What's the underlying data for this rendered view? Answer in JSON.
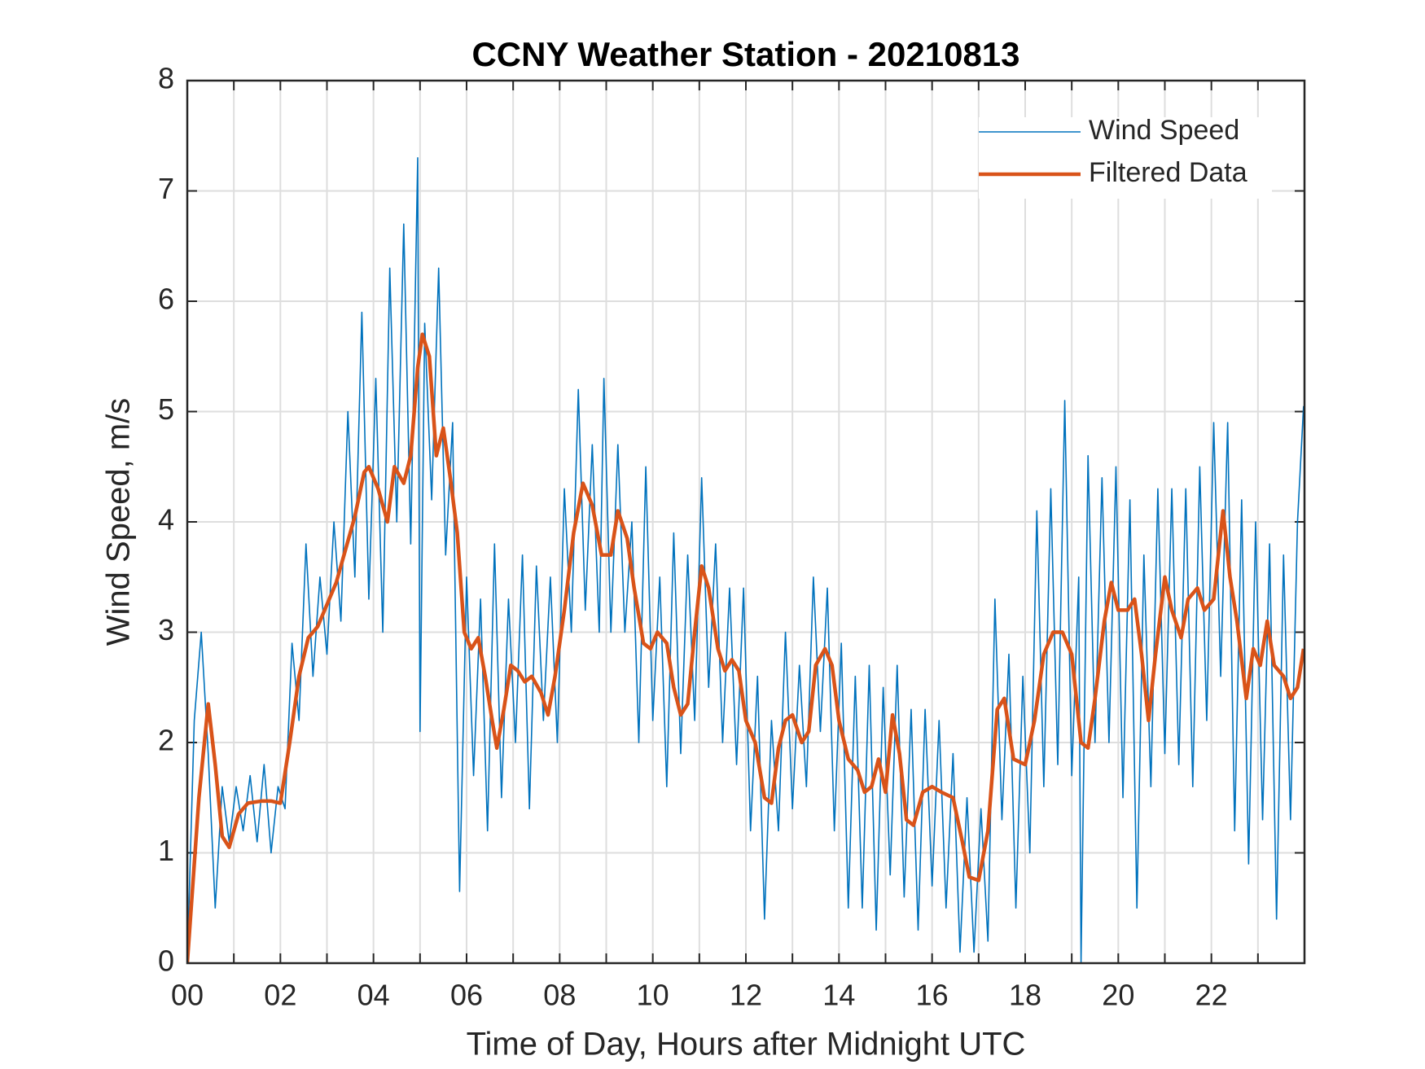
{
  "chart_data": {
    "type": "line",
    "title": "CCNY Weather Station - 20210813",
    "xlabel": "Time of Day, Hours after Midnight UTC",
    "ylabel": "Wind Speed, m/s",
    "xlim": [
      0,
      24
    ],
    "ylim": [
      0,
      8
    ],
    "xticks": [
      {
        "value": 0,
        "label": "00"
      },
      {
        "value": 2,
        "label": "02"
      },
      {
        "value": 4,
        "label": "04"
      },
      {
        "value": 6,
        "label": "06"
      },
      {
        "value": 8,
        "label": "08"
      },
      {
        "value": 10,
        "label": "10"
      },
      {
        "value": 12,
        "label": "12"
      },
      {
        "value": 14,
        "label": "14"
      },
      {
        "value": 16,
        "label": "16"
      },
      {
        "value": 18,
        "label": "18"
      },
      {
        "value": 20,
        "label": "20"
      },
      {
        "value": 22,
        "label": "22"
      }
    ],
    "xminorticks": [
      1,
      3,
      5,
      7,
      9,
      11,
      13,
      15,
      17,
      19,
      21,
      23
    ],
    "yticks": [
      0,
      1,
      2,
      3,
      4,
      5,
      6,
      7,
      8
    ],
    "grid": true,
    "legend": "upper right",
    "series": [
      {
        "name": "Wind Speed",
        "color": "#0072BD",
        "width": 1.6,
        "x": [
          0,
          0.15,
          0.3,
          0.45,
          0.6,
          0.75,
          0.9,
          1.05,
          1.2,
          1.35,
          1.5,
          1.65,
          1.8,
          1.95,
          2.1,
          2.25,
          2.4,
          2.55,
          2.7,
          2.85,
          3.0,
          3.15,
          3.3,
          3.45,
          3.6,
          3.75,
          3.9,
          4.05,
          4.2,
          4.35,
          4.5,
          4.65,
          4.8,
          4.95,
          5.0,
          5.1,
          5.25,
          5.4,
          5.55,
          5.7,
          5.85,
          6.0,
          6.15,
          6.3,
          6.45,
          6.6,
          6.75,
          6.9,
          7.05,
          7.2,
          7.35,
          7.5,
          7.65,
          7.8,
          7.95,
          8.1,
          8.25,
          8.4,
          8.55,
          8.7,
          8.85,
          8.95,
          9.1,
          9.25,
          9.4,
          9.55,
          9.7,
          9.85,
          10.0,
          10.15,
          10.3,
          10.45,
          10.6,
          10.75,
          10.9,
          11.05,
          11.2,
          11.35,
          11.5,
          11.65,
          11.8,
          11.95,
          12.1,
          12.25,
          12.4,
          12.55,
          12.7,
          12.85,
          13.0,
          13.15,
          13.3,
          13.45,
          13.6,
          13.75,
          13.9,
          14.05,
          14.2,
          14.35,
          14.5,
          14.65,
          14.8,
          14.95,
          15.1,
          15.25,
          15.4,
          15.55,
          15.7,
          15.85,
          16.0,
          16.15,
          16.3,
          16.45,
          16.6,
          16.75,
          16.9,
          17.05,
          17.2,
          17.35,
          17.5,
          17.65,
          17.8,
          17.95,
          18.1,
          18.25,
          18.4,
          18.55,
          18.7,
          18.85,
          19.0,
          19.15,
          19.2,
          19.35,
          19.5,
          19.65,
          19.8,
          19.95,
          20.1,
          20.25,
          20.4,
          20.55,
          20.7,
          20.85,
          21.0,
          21.15,
          21.3,
          21.45,
          21.6,
          21.75,
          21.9,
          22.05,
          22.2,
          22.35,
          22.5,
          22.65,
          22.8,
          22.95,
          23.1,
          23.25,
          23.4,
          23.55,
          23.7,
          23.85,
          23.98
        ],
        "values": [
          0,
          2.2,
          3.0,
          1.9,
          0.5,
          1.6,
          1.1,
          1.6,
          1.2,
          1.7,
          1.1,
          1.8,
          1.0,
          1.6,
          1.4,
          2.9,
          2.2,
          3.8,
          2.6,
          3.5,
          2.8,
          4.0,
          3.1,
          5.0,
          3.5,
          5.9,
          3.3,
          5.3,
          3.0,
          6.3,
          4.0,
          6.7,
          3.8,
          7.3,
          2.1,
          5.8,
          4.2,
          6.3,
          3.7,
          4.9,
          0.65,
          3.5,
          1.7,
          3.3,
          1.2,
          3.8,
          1.5,
          3.3,
          2.0,
          3.7,
          1.4,
          3.6,
          2.2,
          3.5,
          2.0,
          4.3,
          3.0,
          5.2,
          3.2,
          4.7,
          3.0,
          5.3,
          3.0,
          4.7,
          3.0,
          4.0,
          2.0,
          4.5,
          2.2,
          3.5,
          1.6,
          3.9,
          1.9,
          3.7,
          2.2,
          4.4,
          2.5,
          3.8,
          2.0,
          3.4,
          1.8,
          3.4,
          1.2,
          2.6,
          0.4,
          2.2,
          1.2,
          3.0,
          1.4,
          2.7,
          1.6,
          3.5,
          2.1,
          3.4,
          1.2,
          2.9,
          0.5,
          2.6,
          0.5,
          2.7,
          0.3,
          2.5,
          0.8,
          2.7,
          0.6,
          2.3,
          0.3,
          2.3,
          0.7,
          2.2,
          0.5,
          1.9,
          0.1,
          1.5,
          0.1,
          1.4,
          0.2,
          3.3,
          1.3,
          2.8,
          0.5,
          2.6,
          1.0,
          4.1,
          1.6,
          4.3,
          1.8,
          5.1,
          1.7,
          3.5,
          0.0,
          4.6,
          2.0,
          4.4,
          2.0,
          4.5,
          1.5,
          4.2,
          0.5,
          3.7,
          1.6,
          4.3,
          1.9,
          4.3,
          1.8,
          4.3,
          1.6,
          4.5,
          2.2,
          4.9,
          2.6,
          4.9,
          1.2,
          4.2,
          0.9,
          4.0,
          1.3,
          3.8,
          0.4,
          3.7,
          1.3,
          4.0,
          5.05
        ]
      },
      {
        "name": "Filtered Data",
        "color": "#D95319",
        "width": 4.5,
        "x": [
          0,
          0.25,
          0.45,
          0.6,
          0.75,
          0.9,
          1.1,
          1.3,
          1.6,
          1.8,
          2.0,
          2.2,
          2.4,
          2.6,
          2.8,
          3.0,
          3.2,
          3.4,
          3.6,
          3.8,
          3.9,
          4.1,
          4.3,
          4.45,
          4.65,
          4.8,
          4.95,
          5.05,
          5.2,
          5.35,
          5.5,
          5.65,
          5.8,
          5.95,
          6.1,
          6.25,
          6.4,
          6.55,
          6.65,
          6.8,
          6.95,
          7.1,
          7.25,
          7.4,
          7.6,
          7.75,
          7.9,
          8.1,
          8.3,
          8.5,
          8.7,
          8.9,
          9.1,
          9.25,
          9.45,
          9.6,
          9.8,
          9.95,
          10.1,
          10.3,
          10.45,
          10.6,
          10.75,
          10.9,
          11.05,
          11.2,
          11.4,
          11.55,
          11.7,
          11.85,
          12.0,
          12.2,
          12.4,
          12.55,
          12.7,
          12.85,
          13.0,
          13.2,
          13.35,
          13.5,
          13.7,
          13.85,
          14.0,
          14.2,
          14.4,
          14.55,
          14.7,
          14.85,
          15.0,
          15.15,
          15.3,
          15.45,
          15.6,
          15.8,
          16.0,
          16.2,
          16.45,
          16.65,
          16.8,
          17.0,
          17.2,
          17.4,
          17.55,
          17.75,
          18.0,
          18.2,
          18.4,
          18.6,
          18.8,
          19.0,
          19.2,
          19.35,
          19.5,
          19.7,
          19.85,
          20.0,
          20.2,
          20.35,
          20.5,
          20.65,
          20.8,
          21.0,
          21.15,
          21.35,
          21.5,
          21.7,
          21.85,
          22.05,
          22.25,
          22.4,
          22.55,
          22.75,
          22.9,
          23.05,
          23.2,
          23.35,
          23.55,
          23.7,
          23.85,
          23.98
        ],
        "values": [
          0,
          1.5,
          2.35,
          1.8,
          1.15,
          1.05,
          1.35,
          1.45,
          1.47,
          1.47,
          1.45,
          2.0,
          2.6,
          2.95,
          3.05,
          3.25,
          3.45,
          3.75,
          4.05,
          4.45,
          4.5,
          4.3,
          4.0,
          4.5,
          4.35,
          4.6,
          5.4,
          5.7,
          5.5,
          4.6,
          4.85,
          4.4,
          3.9,
          3.0,
          2.85,
          2.95,
          2.6,
          2.2,
          1.95,
          2.3,
          2.7,
          2.65,
          2.55,
          2.6,
          2.45,
          2.25,
          2.6,
          3.2,
          3.9,
          4.35,
          4.15,
          3.7,
          3.7,
          4.1,
          3.85,
          3.4,
          2.9,
          2.85,
          3.0,
          2.9,
          2.5,
          2.25,
          2.35,
          3.0,
          3.6,
          3.4,
          2.85,
          2.65,
          2.75,
          2.65,
          2.2,
          2.0,
          1.5,
          1.45,
          1.95,
          2.2,
          2.25,
          2.0,
          2.1,
          2.7,
          2.85,
          2.7,
          2.2,
          1.85,
          1.75,
          1.55,
          1.6,
          1.85,
          1.55,
          2.25,
          1.9,
          1.3,
          1.25,
          1.55,
          1.6,
          1.55,
          1.5,
          1.1,
          0.78,
          0.75,
          1.2,
          2.3,
          2.4,
          1.85,
          1.8,
          2.2,
          2.8,
          3.0,
          3.0,
          2.8,
          2.0,
          1.95,
          2.4,
          3.1,
          3.45,
          3.2,
          3.2,
          3.3,
          2.8,
          2.2,
          2.8,
          3.5,
          3.2,
          2.95,
          3.3,
          3.4,
          3.2,
          3.3,
          4.1,
          3.5,
          3.1,
          2.4,
          2.85,
          2.7,
          3.1,
          2.7,
          2.6,
          2.4,
          2.5,
          2.85
        ]
      }
    ]
  }
}
